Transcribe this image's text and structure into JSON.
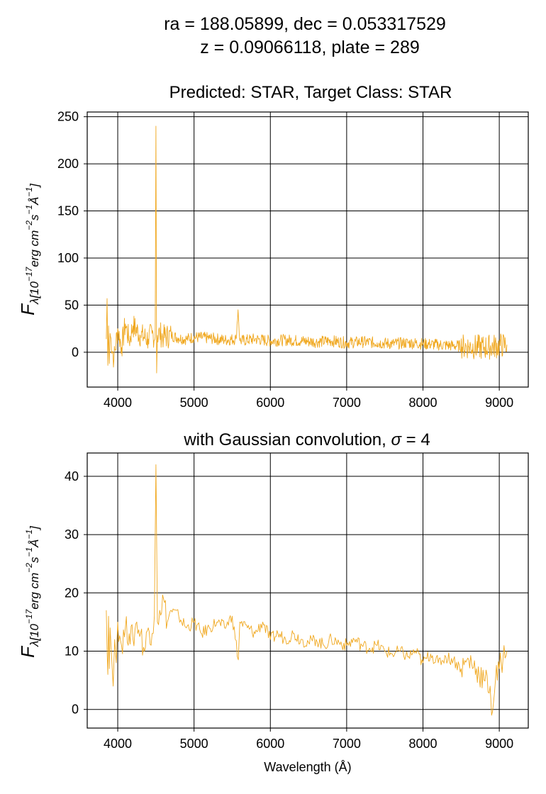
{
  "figure": {
    "title_line1": "ra = 188.05899, dec = 0.053317529",
    "title_line2": "z = 0.09066118, plate = 289"
  },
  "chart_data": [
    {
      "type": "line",
      "title": "Predicted: STAR, Target Class: STAR",
      "xlabel": "",
      "ylabel": "F_λ[10^-17 erg cm^-2 s^-1 Å^-1]",
      "xlim": [
        3600,
        9380
      ],
      "ylim": [
        -37,
        255
      ],
      "x_ticks": [
        4000,
        5000,
        6000,
        7000,
        8000,
        9000
      ],
      "y_ticks": [
        0,
        50,
        100,
        150,
        200,
        250
      ],
      "grid": true,
      "series": [
        {
          "color": "#F0A820",
          "description": "noisy raw flux spectrum, approx samples",
          "x": [
            3850,
            3860,
            3870,
            3880,
            3890,
            3900,
            3950,
            4000,
            4050,
            4100,
            4150,
            4200,
            4300,
            4400,
            4450,
            4490,
            4500,
            4510,
            4520,
            4550,
            4600,
            4700,
            4800,
            4900,
            5000,
            5200,
            5400,
            5550,
            5577,
            5600,
            5800,
            6000,
            6200,
            6400,
            6600,
            6800,
            7000,
            7200,
            7400,
            7600,
            7800,
            8000,
            8200,
            8400,
            8600,
            8800,
            9000,
            9100
          ],
          "y": [
            14,
            57,
            -14,
            28,
            -12,
            20,
            -8,
            25,
            5,
            30,
            12,
            28,
            18,
            14,
            20,
            16,
            240,
            -22,
            18,
            20,
            16,
            18,
            15,
            14,
            16,
            15,
            13,
            14,
            45,
            12,
            14,
            12,
            13,
            12,
            11,
            12,
            10,
            11,
            10,
            9,
            10,
            9,
            8,
            7,
            6,
            5,
            7,
            8
          ]
        }
      ]
    },
    {
      "type": "line",
      "title": "with Gaussian convolution, σ = 4",
      "xlabel": "Wavelength (Å)",
      "ylabel": "F_λ[10^-17 erg cm^-2 s^-1 Å^-1]",
      "xlim": [
        3600,
        9380
      ],
      "ylim": [
        -3.2,
        44
      ],
      "x_ticks": [
        4000,
        5000,
        6000,
        7000,
        8000,
        9000
      ],
      "y_ticks": [
        0,
        10,
        20,
        30,
        40
      ],
      "grid": true,
      "series": [
        {
          "color": "#F0A820",
          "description": "smoothed flux spectrum, approx samples",
          "x": [
            3850,
            3860,
            3870,
            3880,
            3890,
            3900,
            3920,
            3940,
            3960,
            3980,
            4000,
            4050,
            4100,
            4150,
            4200,
            4250,
            4300,
            4350,
            4400,
            4450,
            4480,
            4500,
            4520,
            4550,
            4600,
            4650,
            4700,
            4800,
            4900,
            5000,
            5100,
            5200,
            5300,
            5400,
            5500,
            5580,
            5600,
            5700,
            5800,
            5900,
            6000,
            6100,
            6200,
            6300,
            6400,
            6500,
            6600,
            6700,
            6800,
            6900,
            7000,
            7100,
            7200,
            7300,
            7400,
            7500,
            7600,
            7700,
            7800,
            7900,
            8000,
            8100,
            8200,
            8300,
            8400,
            8500,
            8600,
            8700,
            8800,
            8880,
            8900,
            8950,
            9000,
            9050,
            9100
          ],
          "y": [
            17,
            10,
            6,
            16,
            7,
            14,
            9,
            4,
            12,
            8,
            15,
            11,
            14,
            13,
            12,
            15,
            13,
            10,
            14,
            13,
            16,
            42,
            15,
            17,
            19,
            15,
            17,
            16,
            14,
            15,
            13,
            14,
            15,
            14,
            16,
            8.5,
            15,
            14,
            13,
            15,
            12,
            13,
            12,
            13,
            12,
            11.5,
            12,
            11,
            12,
            11.5,
            11,
            12,
            11,
            10.5,
            11,
            10,
            9.5,
            10,
            9,
            10,
            8,
            9.5,
            8,
            9,
            8.5,
            7,
            8.5,
            7,
            5,
            4,
            -1,
            5,
            7,
            9,
            10
          ]
        }
      ]
    }
  ]
}
